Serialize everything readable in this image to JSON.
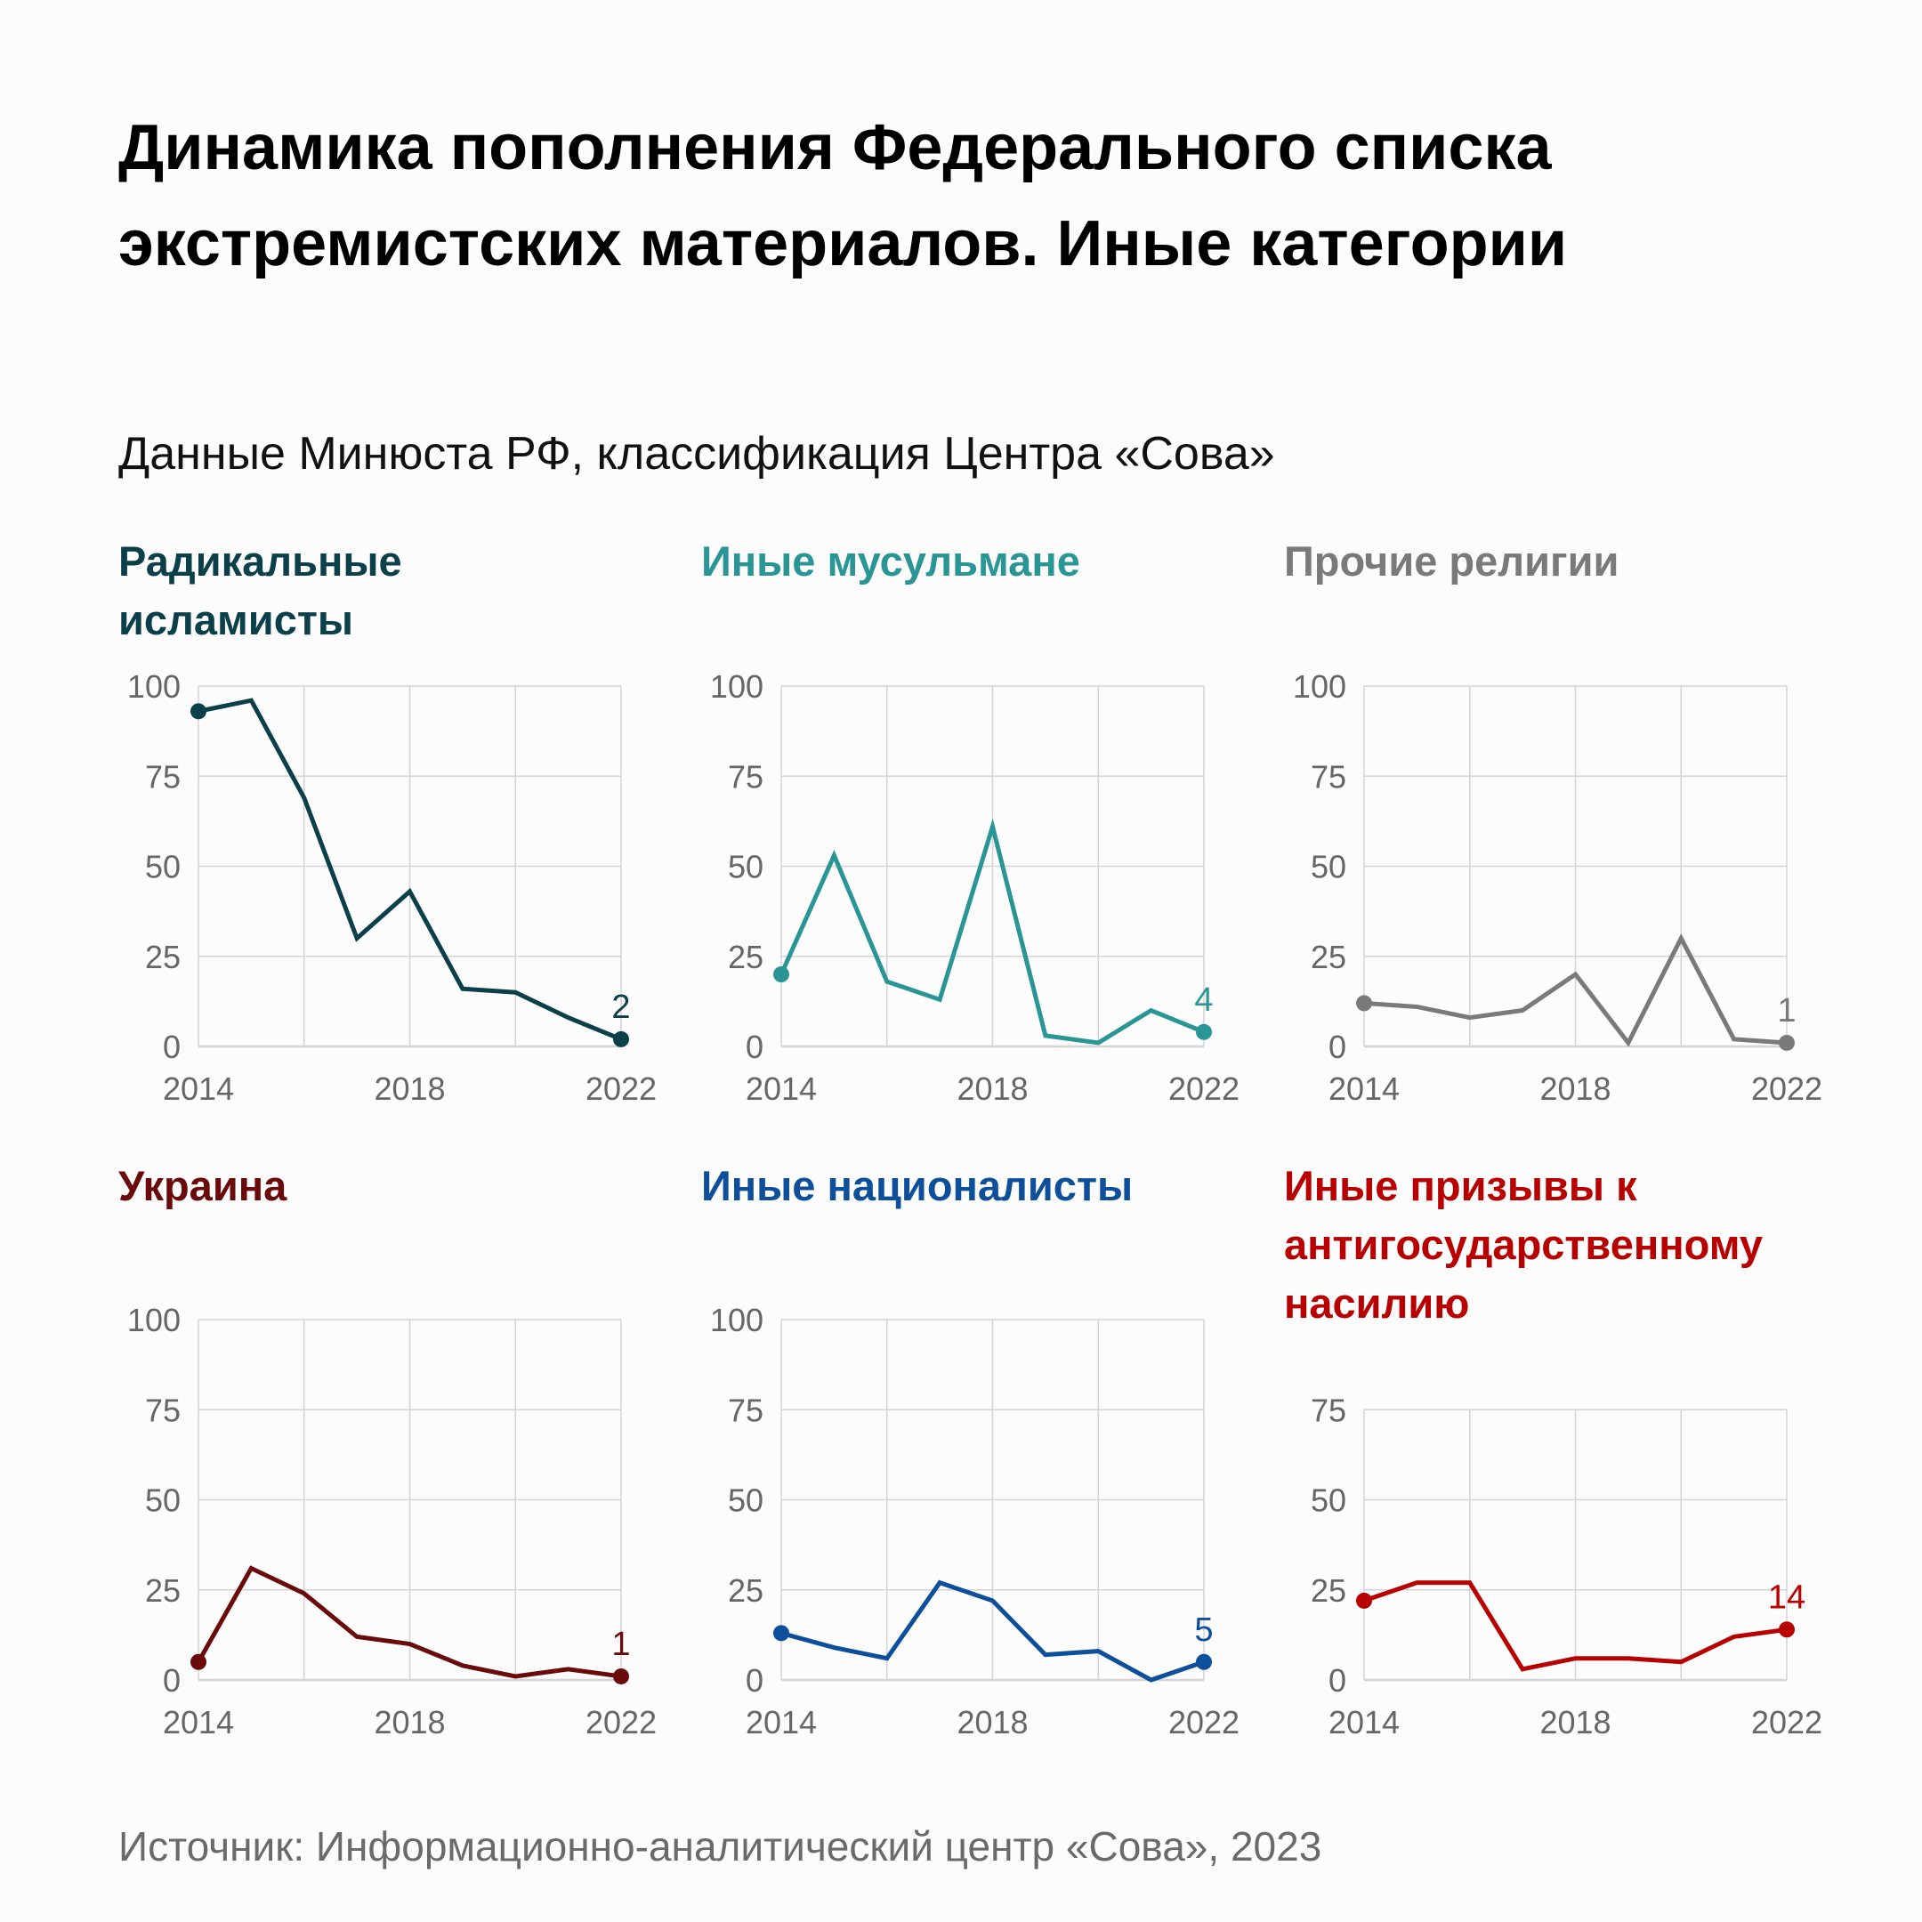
{
  "title": "Динамика пополнения Федерального списка экстремистских материалов. Иные категории",
  "subtitle": "Данные Минюста РФ, классификация Центра «Сова»",
  "source": "Источник: Информационно-аналитический центр «Сова», 2023",
  "chart_data": [
    {
      "type": "line",
      "title": "Радикальные исламисты",
      "color": "#0b3f4a",
      "x": [
        2014,
        2015,
        2016,
        2017,
        2018,
        2019,
        2020,
        2021,
        2022
      ],
      "values": [
        93,
        96,
        69,
        30,
        43,
        16,
        15,
        8,
        2
      ],
      "end_label": "2",
      "ylim": [
        0,
        100
      ],
      "yticks": [
        0,
        25,
        50,
        75,
        100
      ],
      "xticks": [
        2014,
        2018,
        2022
      ],
      "grid": true
    },
    {
      "type": "line",
      "title": "Иные мусульмане",
      "color": "#2a9595",
      "x": [
        2014,
        2015,
        2016,
        2017,
        2018,
        2019,
        2020,
        2021,
        2022
      ],
      "values": [
        20,
        53,
        18,
        13,
        61,
        3,
        1,
        10,
        4
      ],
      "end_label": "4",
      "ylim": [
        0,
        100
      ],
      "yticks": [
        0,
        25,
        50,
        75,
        100
      ],
      "xticks": [
        2014,
        2018,
        2022
      ],
      "grid": true
    },
    {
      "type": "line",
      "title": "Прочие религии",
      "color": "#7a7a7a",
      "x": [
        2014,
        2015,
        2016,
        2017,
        2018,
        2019,
        2020,
        2021,
        2022
      ],
      "values": [
        12,
        11,
        8,
        10,
        20,
        1,
        30,
        2,
        1
      ],
      "end_label": "1",
      "ylim": [
        0,
        100
      ],
      "yticks": [
        0,
        25,
        50,
        75,
        100
      ],
      "xticks": [
        2014,
        2018,
        2022
      ],
      "grid": true
    },
    {
      "type": "line",
      "title": "Украина",
      "color": "#6b0a0a",
      "x": [
        2014,
        2015,
        2016,
        2017,
        2018,
        2019,
        2020,
        2021,
        2022
      ],
      "values": [
        5,
        31,
        24,
        12,
        10,
        4,
        1,
        3,
        1
      ],
      "end_label": "1",
      "ylim": [
        0,
        100
      ],
      "yticks": [
        0,
        25,
        50,
        75,
        100
      ],
      "xticks": [
        2014,
        2018,
        2022
      ],
      "grid": true
    },
    {
      "type": "line",
      "title": "Иные националисты",
      "color": "#0d4f9a",
      "x": [
        2014,
        2015,
        2016,
        2017,
        2018,
        2019,
        2020,
        2021,
        2022
      ],
      "values": [
        13,
        9,
        6,
        27,
        22,
        7,
        8,
        0,
        5
      ],
      "end_label": "5",
      "ylim": [
        0,
        100
      ],
      "yticks": [
        0,
        25,
        50,
        75,
        100
      ],
      "xticks": [
        2014,
        2018,
        2022
      ],
      "grid": true
    },
    {
      "type": "line",
      "title": "Иные призывы к антигосударственному насилию",
      "color": "#b80000",
      "x": [
        2014,
        2015,
        2016,
        2017,
        2018,
        2019,
        2020,
        2021,
        2022
      ],
      "values": [
        22,
        27,
        27,
        3,
        6,
        6,
        5,
        12,
        14
      ],
      "end_label": "14",
      "ylim": [
        0,
        75
      ],
      "yticks": [
        0,
        25,
        50,
        75
      ],
      "xticks": [
        2014,
        2018,
        2022
      ],
      "grid": true
    }
  ]
}
